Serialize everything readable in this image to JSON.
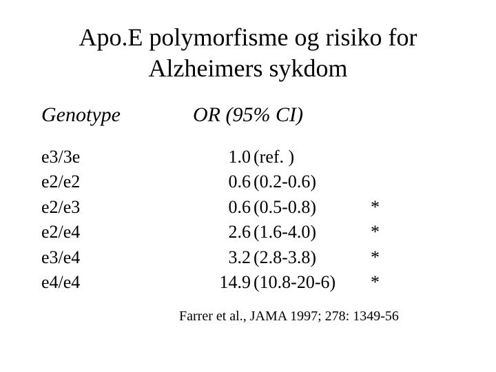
{
  "title_line1": "Apo.E polymorfisme og risiko for",
  "title_line2": "Alzheimers sykdom",
  "header_genotype": "Genotype",
  "header_or": "OR (95% CI)",
  "rows": [
    {
      "genotype": "e3/3e",
      "or": "1.0",
      "ci": "(ref.     )",
      "star": ""
    },
    {
      "genotype": "e2/e2",
      "or": "0.6",
      "ci": "(0.2-0.6)",
      "star": ""
    },
    {
      "genotype": "e2/e3",
      "or": "0.6",
      "ci": "(0.5-0.8)",
      "star": "*"
    },
    {
      "genotype": "e2/e4",
      "or": "2.6",
      "ci": "(1.6-4.0)",
      "star": "*"
    },
    {
      "genotype": "e3/e4",
      "or": "3.2",
      "ci": "(2.8-3.8)",
      "star": "*"
    },
    {
      "genotype": "e4/e4",
      "or": "14.9",
      "ci": "(10.8-20-6)",
      "star": "*"
    }
  ],
  "citation": "Farrer et al., JAMA 1997; 278: 1349-56"
}
